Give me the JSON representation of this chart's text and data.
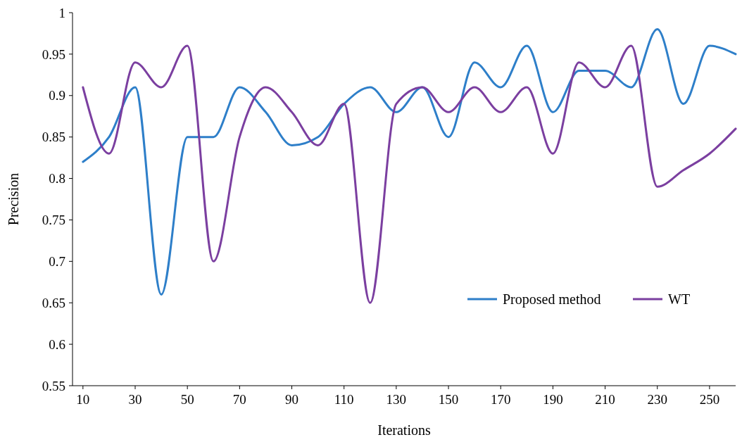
{
  "chart_data": {
    "type": "line",
    "xlabel": "Iterations",
    "ylabel": "Precision",
    "x": [
      10,
      20,
      30,
      40,
      50,
      60,
      70,
      80,
      90,
      100,
      110,
      120,
      130,
      140,
      150,
      160,
      170,
      180,
      190,
      200,
      210,
      220,
      230,
      240,
      250,
      260
    ],
    "xlim": [
      6,
      260
    ],
    "xticks": [
      10,
      30,
      50,
      70,
      90,
      110,
      130,
      150,
      170,
      190,
      210,
      230,
      250
    ],
    "ylim": [
      0.55,
      1
    ],
    "yticks": [
      {
        "value": 0.55,
        "label": "0.55"
      },
      {
        "value": 0.6,
        "label": "0.6"
      },
      {
        "value": 0.65,
        "label": "0.65"
      },
      {
        "value": 0.7,
        "label": "0.7"
      },
      {
        "value": 0.75,
        "label": "0.75"
      },
      {
        "value": 0.8,
        "label": "0.8"
      },
      {
        "value": 0.85,
        "label": "0.85"
      },
      {
        "value": 0.9,
        "label": "0.9"
      },
      {
        "value": 0.95,
        "label": "0.95"
      },
      {
        "value": 1,
        "label": "1"
      }
    ],
    "grid": false,
    "legend": "right",
    "marker": "none",
    "line_style": "solid",
    "series": [
      {
        "name": "Proposed method",
        "color": "#2e7fc9",
        "values": [
          0.82,
          0.85,
          0.91,
          0.66,
          0.85,
          0.85,
          0.91,
          0.88,
          0.84,
          0.85,
          0.89,
          0.91,
          0.88,
          0.91,
          0.85,
          0.94,
          0.91,
          0.96,
          0.88,
          0.93,
          0.93,
          0.91,
          0.98,
          0.89,
          0.96,
          0.95
        ]
      },
      {
        "name": "WT",
        "color": "#7b3fa0",
        "values": [
          0.91,
          0.83,
          0.94,
          0.91,
          0.96,
          0.7,
          0.85,
          0.91,
          0.88,
          0.84,
          0.89,
          0.65,
          0.89,
          0.91,
          0.88,
          0.91,
          0.88,
          0.91,
          0.83,
          0.94,
          0.91,
          0.96,
          0.79,
          0.81,
          0.83,
          0.86
        ]
      }
    ]
  }
}
